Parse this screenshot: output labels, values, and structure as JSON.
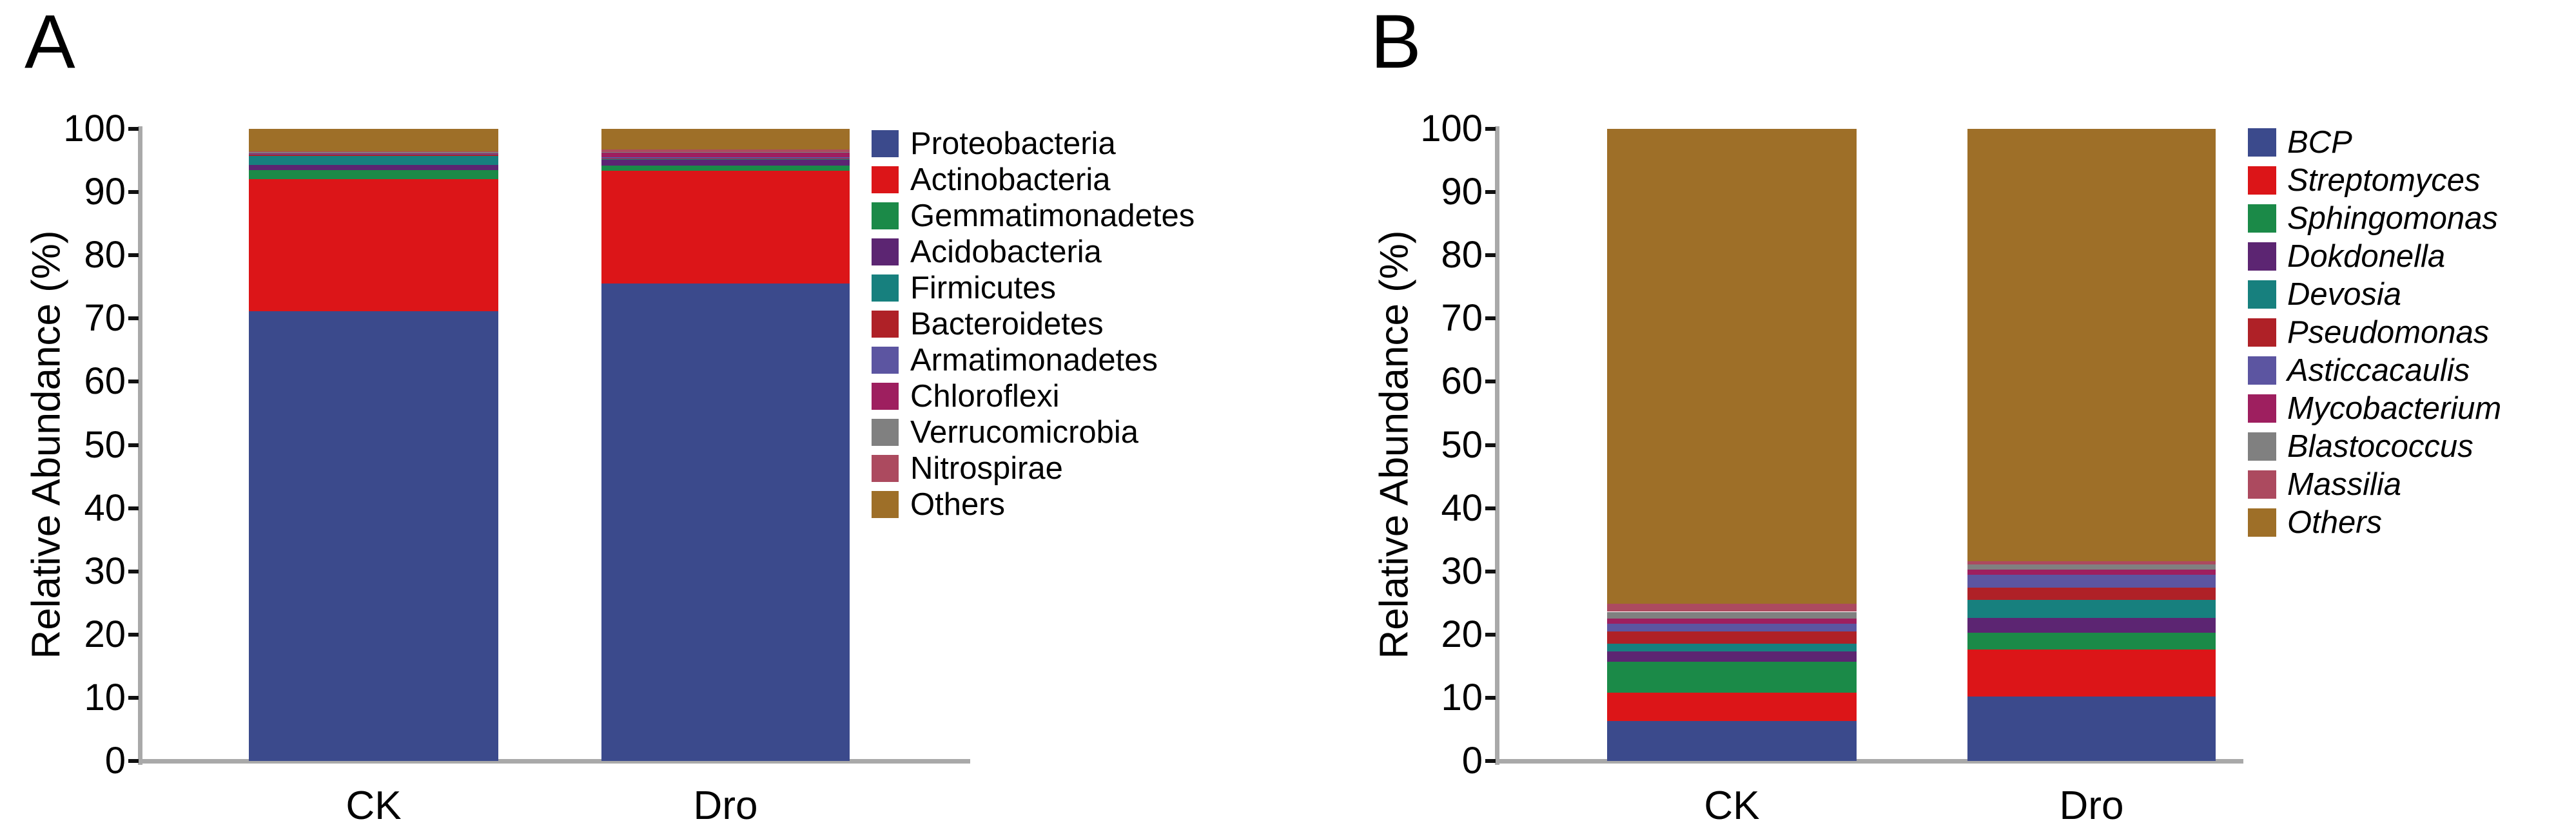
{
  "chart_data": [
    {
      "type": "bar",
      "stacked": true,
      "panel_label": "A",
      "ylabel": "Relative Abundance (%)",
      "ylim": [
        0,
        100
      ],
      "yticks": [
        0,
        10,
        20,
        30,
        40,
        50,
        60,
        70,
        80,
        90,
        100
      ],
      "categories": [
        "CK",
        "Dro"
      ],
      "legend_position": "right",
      "legend_italic": false,
      "grid": false,
      "series": [
        {
          "name": "Proteobacteria",
          "color": "#3B4A8C",
          "values": [
            71.2,
            75.5
          ]
        },
        {
          "name": "Actinobacteria",
          "color": "#DC1518",
          "values": [
            20.8,
            17.9
          ]
        },
        {
          "name": "Gemmatimonadetes",
          "color": "#1B8A48",
          "values": [
            1.5,
            0.8
          ]
        },
        {
          "name": "Acidobacteria",
          "color": "#5C2572",
          "values": [
            0.8,
            0.9
          ]
        },
        {
          "name": "Firmicutes",
          "color": "#17807E",
          "values": [
            1.4,
            0.1
          ]
        },
        {
          "name": "Bacteroidetes",
          "color": "#AF2127",
          "values": [
            0.3,
            0.1
          ]
        },
        {
          "name": "Armatimonadetes",
          "color": "#5C55A1",
          "values": [
            0.05,
            0.2
          ]
        },
        {
          "name": "Chloroflexi",
          "color": "#9E1F5F",
          "values": [
            0.05,
            0.7
          ]
        },
        {
          "name": "Verrucomicrobia",
          "color": "#808080",
          "values": [
            0.25,
            0.1
          ]
        },
        {
          "name": "Nitrospirae",
          "color": "#AC4A5F",
          "values": [
            0.05,
            0.4
          ]
        },
        {
          "name": "Others",
          "color": "#9E6F28",
          "values": [
            3.6,
            3.3
          ]
        }
      ]
    },
    {
      "type": "bar",
      "stacked": true,
      "panel_label": "B",
      "ylabel": "Relative Abundance (%)",
      "ylim": [
        0,
        100
      ],
      "yticks": [
        0,
        10,
        20,
        30,
        40,
        50,
        60,
        70,
        80,
        90,
        100
      ],
      "categories": [
        "CK",
        "Dro"
      ],
      "legend_position": "right",
      "legend_italic": true,
      "grid": false,
      "series": [
        {
          "name": "BCP",
          "color": "#3B4A8C",
          "values": [
            6.3,
            10.2
          ]
        },
        {
          "name": "Streptomyces",
          "color": "#DC1518",
          "values": [
            4.5,
            7.4
          ]
        },
        {
          "name": "Sphingomonas",
          "color": "#1B8A48",
          "values": [
            4.9,
            2.7
          ]
        },
        {
          "name": "Dokdonella",
          "color": "#5C2572",
          "values": [
            1.6,
            2.3
          ]
        },
        {
          "name": "Devosia",
          "color": "#17807E",
          "values": [
            1.3,
            2.9
          ]
        },
        {
          "name": "Pseudomonas",
          "color": "#AF2127",
          "values": [
            1.9,
            1.9
          ]
        },
        {
          "name": "Asticcacaulis",
          "color": "#5C55A1",
          "values": [
            1.2,
            2.1
          ]
        },
        {
          "name": "Mycobacterium",
          "color": "#9E1F5F",
          "values": [
            0.8,
            0.8
          ]
        },
        {
          "name": "Blastococcus",
          "color": "#808080",
          "values": [
            1.1,
            0.8
          ]
        },
        {
          "name": "Massilia",
          "color": "#AC4A5F",
          "values": [
            1.3,
            0.5
          ]
        },
        {
          "name": "Others",
          "color": "#9E6F28",
          "values": [
            75.1,
            68.4
          ]
        }
      ]
    }
  ]
}
